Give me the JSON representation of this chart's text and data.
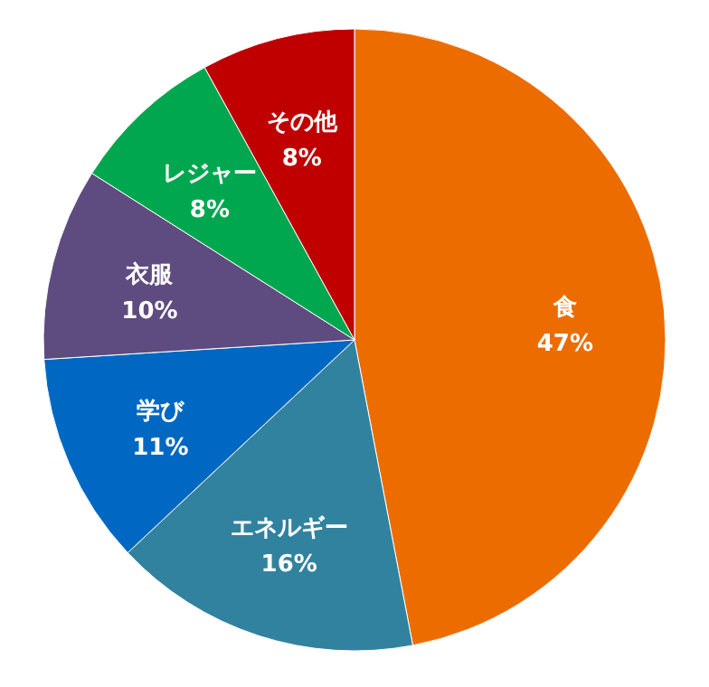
{
  "chart_data": {
    "type": "pie",
    "categories": [
      "食",
      "エネルギー",
      "学び",
      "衣服",
      "レジャー",
      "その他"
    ],
    "values": [
      47,
      16,
      11,
      10,
      8,
      8
    ],
    "colors": [
      "#ed6c00",
      "#31829f",
      "#0068c2",
      "#5e4b7f",
      "#00a74f",
      "#c00000"
    ],
    "value_labels": [
      "47%",
      "16%",
      "11%",
      "10%",
      "8%",
      "8%"
    ],
    "legend": false
  }
}
